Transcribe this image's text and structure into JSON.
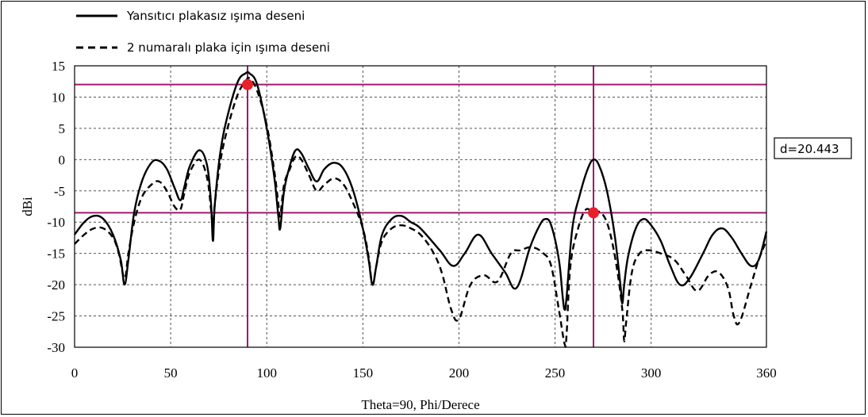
{
  "chart_data": {
    "type": "line",
    "xlabel": "Theta=90, Phi/Derece",
    "ylabel": "dBi",
    "xlim": [
      0,
      360
    ],
    "ylim": [
      -30,
      15
    ],
    "x_ticks": [
      0,
      50,
      100,
      150,
      200,
      250,
      300,
      360
    ],
    "y_ticks": [
      15,
      10,
      5,
      0,
      -5,
      -10,
      -15,
      -20,
      -25,
      -30
    ],
    "grid": true,
    "legend_position": "top-left",
    "series": [
      {
        "name": "Yansıtıcı plakasız ışıma deseni",
        "style": "solid",
        "color": "#000000",
        "x": [
          0,
          5,
          10,
          15,
          20,
          24,
          26,
          28,
          31,
          35,
          40,
          44,
          48,
          52,
          55,
          57,
          60,
          65,
          69,
          71,
          72,
          73,
          76,
          80,
          85,
          89,
          91,
          95,
          100,
          104,
          106,
          107,
          109,
          112,
          115,
          118,
          122,
          126,
          130,
          135,
          140,
          145,
          150,
          153,
          155,
          157,
          160,
          165,
          170,
          175,
          180,
          190,
          197,
          203,
          210,
          217,
          224,
          230,
          237,
          242,
          245,
          248,
          252,
          254,
          255,
          256,
          259,
          263,
          267,
          270,
          273,
          277,
          281,
          284,
          285,
          286,
          288,
          292,
          296,
          300,
          305,
          310,
          315,
          320,
          327,
          332,
          337,
          342,
          347,
          352,
          356,
          360
        ],
        "y": [
          -12,
          -10,
          -9,
          -9.5,
          -12,
          -16,
          -20,
          -16,
          -8.5,
          -3.5,
          -0.5,
          -0.2,
          -1.5,
          -4.5,
          -6.5,
          -4.5,
          -1,
          1.5,
          -1,
          -7,
          -13,
          -7,
          1.5,
          7.5,
          12.5,
          13.8,
          13.8,
          12,
          5,
          -3,
          -9,
          -11,
          -5,
          -1,
          1.5,
          1,
          -1.5,
          -3.5,
          -1.5,
          -0.5,
          -1.5,
          -5,
          -11,
          -16,
          -20,
          -17,
          -12,
          -9.5,
          -9,
          -10,
          -11,
          -14.5,
          -17,
          -15,
          -12,
          -15,
          -18,
          -20.5,
          -14,
          -10.5,
          -9.5,
          -10.5,
          -16,
          -22,
          -24,
          -22,
          -11,
          -5.5,
          -1.5,
          0,
          -1,
          -5,
          -12,
          -20,
          -23,
          -20,
          -15.5,
          -11,
          -9.5,
          -10.5,
          -13,
          -17,
          -20,
          -19,
          -15,
          -12,
          -11,
          -12.5,
          -15,
          -17,
          -16,
          -11.5
        ]
      },
      {
        "name": "2 numaralı plaka için ışıma deseni",
        "style": "dashed",
        "color": "#000000",
        "x": [
          0,
          5,
          10,
          15,
          20,
          23,
          26,
          28,
          31,
          35,
          40,
          44,
          48,
          52,
          55,
          57,
          60,
          65,
          69,
          71,
          72,
          73,
          76,
          80,
          85,
          89,
          91,
          95,
          100,
          104,
          106,
          107,
          109,
          112,
          115,
          118,
          122,
          126,
          130,
          135,
          140,
          145,
          150,
          153,
          155,
          157,
          160,
          165,
          170,
          175,
          180,
          186,
          191,
          196,
          200,
          206,
          213,
          220,
          227,
          232,
          238,
          244,
          248,
          252,
          255,
          256,
          258,
          262,
          266,
          270,
          274,
          278,
          282,
          285,
          286,
          287,
          290,
          294,
          299,
          305,
          312,
          318,
          324,
          330,
          335,
          340,
          343,
          346,
          352,
          356,
          360
        ],
        "y": [
          -13.5,
          -12,
          -11,
          -11,
          -12.5,
          -15,
          -19,
          -15,
          -10,
          -6,
          -4,
          -3.5,
          -5,
          -7.5,
          -8,
          -5.5,
          -2,
          0,
          -3,
          -8,
          -11,
          -7,
          0,
          5.5,
          10.5,
          12.5,
          13,
          11,
          5.5,
          -2,
          -7,
          -9,
          -4,
          -1.5,
          0.5,
          0,
          -2.5,
          -5,
          -4,
          -3,
          -4,
          -7,
          -11,
          -15.5,
          -20,
          -17,
          -13,
          -11,
          -10.5,
          -11,
          -12,
          -14.5,
          -18,
          -24,
          -25.5,
          -20,
          -18.5,
          -19.5,
          -15,
          -14.5,
          -14,
          -15,
          -17,
          -24,
          -29.5,
          -28,
          -17,
          -11,
          -8,
          -8.5,
          -8.5,
          -11,
          -17,
          -24,
          -29,
          -26,
          -18,
          -15,
          -14.5,
          -15,
          -16,
          -18.5,
          -21,
          -18.5,
          -18,
          -20.5,
          -25,
          -26,
          -20,
          -16,
          -13
        ]
      }
    ],
    "annotations": [
      {
        "type": "hline",
        "y": 12,
        "color": "#a0196e"
      },
      {
        "type": "hline",
        "y": -8.5,
        "color": "#a0196e"
      },
      {
        "type": "vline",
        "x": 90,
        "color": "#a0196e"
      },
      {
        "type": "vline",
        "x": 270,
        "color": "#a0196e"
      },
      {
        "type": "marker",
        "x": 90,
        "y": 12,
        "color": "#e8202a"
      },
      {
        "type": "marker",
        "x": 270,
        "y": -8.5,
        "color": "#e8202a"
      }
    ],
    "label_box": "d=20.443"
  }
}
